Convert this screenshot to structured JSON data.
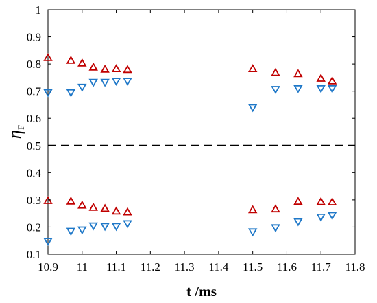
{
  "chart_data": {
    "type": "scatter",
    "title": "",
    "xlabel": "t /ms",
    "ylabel": "η",
    "ylabel_sub": "F",
    "xlim": [
      10.9,
      11.8
    ],
    "ylim": [
      0.1,
      1.0
    ],
    "xticks": [
      "10.9",
      "11",
      "11.1",
      "11.2",
      "11.3",
      "11.4",
      "11.5",
      "11.6",
      "11.7",
      "11.8"
    ],
    "yticks": [
      "0.1",
      "0.2",
      "0.3",
      "0.4",
      "0.5",
      "0.6",
      "0.7",
      "0.8",
      "0.9",
      "1"
    ],
    "grid": false,
    "reference_line": {
      "y": 0.5,
      "style": "dashed",
      "color": "#000000"
    },
    "series": [
      {
        "marker": "triangle-up",
        "color": "#c00000",
        "points": [
          [
            10.9,
            0.823
          ],
          [
            10.967,
            0.813
          ],
          [
            11.0,
            0.803
          ],
          [
            11.033,
            0.788
          ],
          [
            11.067,
            0.78
          ],
          [
            11.1,
            0.782
          ],
          [
            11.133,
            0.779
          ],
          [
            11.5,
            0.782
          ],
          [
            11.567,
            0.768
          ],
          [
            11.633,
            0.764
          ],
          [
            11.7,
            0.747
          ],
          [
            11.733,
            0.737
          ],
          [
            10.9,
            0.297
          ],
          [
            10.967,
            0.295
          ],
          [
            11.0,
            0.28
          ],
          [
            11.033,
            0.272
          ],
          [
            11.067,
            0.268
          ],
          [
            11.1,
            0.258
          ],
          [
            11.133,
            0.255
          ],
          [
            11.5,
            0.263
          ],
          [
            11.567,
            0.266
          ],
          [
            11.633,
            0.294
          ],
          [
            11.7,
            0.293
          ],
          [
            11.733,
            0.292
          ]
        ]
      },
      {
        "marker": "triangle-down",
        "color": "#1f78c8",
        "points": [
          [
            10.9,
            0.695
          ],
          [
            10.967,
            0.695
          ],
          [
            11.0,
            0.715
          ],
          [
            11.033,
            0.733
          ],
          [
            11.067,
            0.733
          ],
          [
            11.1,
            0.737
          ],
          [
            11.133,
            0.737
          ],
          [
            11.5,
            0.64
          ],
          [
            11.567,
            0.707
          ],
          [
            11.633,
            0.71
          ],
          [
            11.7,
            0.71
          ],
          [
            11.733,
            0.71
          ],
          [
            10.9,
            0.148
          ],
          [
            10.967,
            0.185
          ],
          [
            11.0,
            0.19
          ],
          [
            11.033,
            0.205
          ],
          [
            11.067,
            0.203
          ],
          [
            11.1,
            0.203
          ],
          [
            11.133,
            0.213
          ],
          [
            11.5,
            0.183
          ],
          [
            11.567,
            0.198
          ],
          [
            11.633,
            0.22
          ],
          [
            11.7,
            0.237
          ],
          [
            11.733,
            0.243
          ]
        ]
      }
    ]
  }
}
